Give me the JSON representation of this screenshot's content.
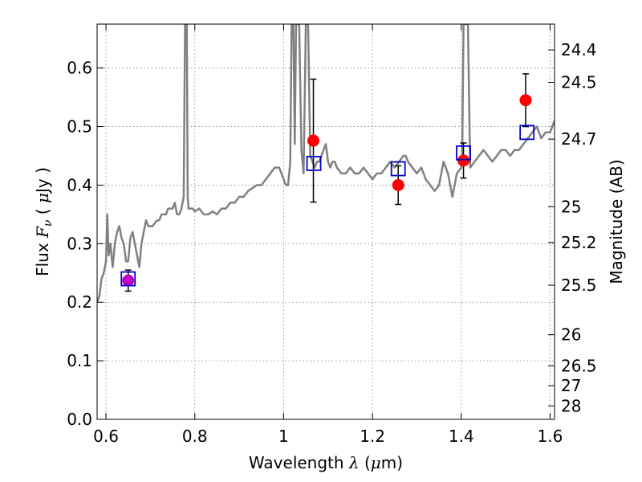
{
  "chart_data": {
    "type": "scatter",
    "title": "",
    "xlabel": {
      "pre": "Wavelength  ",
      "sym": "λ",
      "post": " (",
      "mu": "μ",
      "unit": "m)"
    },
    "ylabel": {
      "pre": "Flux  ",
      "sym": "F",
      "sub": "ν",
      "post": "  ( ",
      "mu": "μ",
      "unit": "Jy )"
    },
    "y2label": "Magnitude (AB)",
    "xlim": [
      0.58,
      1.61
    ],
    "ylim": [
      0.0,
      0.675
    ],
    "grid": true,
    "xticks": [
      {
        "v": 0.6,
        "label": "0.6"
      },
      {
        "v": 0.8,
        "label": "0.8"
      },
      {
        "v": 1.0,
        "label": "1"
      },
      {
        "v": 1.2,
        "label": "1.2"
      },
      {
        "v": 1.4,
        "label": "1.4"
      },
      {
        "v": 1.6,
        "label": "1.6"
      }
    ],
    "yticks": [
      {
        "v": 0.0,
        "label": "0.0"
      },
      {
        "v": 0.1,
        "label": "0.1"
      },
      {
        "v": 0.2,
        "label": "0.2"
      },
      {
        "v": 0.3,
        "label": "0.3"
      },
      {
        "v": 0.4,
        "label": "0.4"
      },
      {
        "v": 0.5,
        "label": "0.5"
      },
      {
        "v": 0.6,
        "label": "0.6"
      }
    ],
    "y2ticks": [
      {
        "v": 24.4,
        "label": "24.4"
      },
      {
        "v": 24.5,
        "label": "24.5"
      },
      {
        "v": 24.7,
        "label": "24.7"
      },
      {
        "v": 25.0,
        "label": "25"
      },
      {
        "v": 25.2,
        "label": "25.2"
      },
      {
        "v": 25.5,
        "label": "25.5"
      },
      {
        "v": 26.0,
        "label": "26"
      },
      {
        "v": 26.5,
        "label": "26.5"
      },
      {
        "v": 27.0,
        "label": "27"
      },
      {
        "v": 28.0,
        "label": "28"
      }
    ],
    "colors": {
      "spectrum": "#808080",
      "observed": "#ff0000",
      "model": "#0000cc",
      "optical": "#c000c0",
      "errorbar": "#000000",
      "grid": "#808080"
    },
    "series": [
      {
        "type": "line",
        "x": [
          0.58,
          0.585,
          0.59,
          0.595,
          0.6,
          0.603,
          0.606,
          0.61,
          0.615,
          0.62,
          0.625,
          0.63,
          0.635,
          0.64,
          0.645,
          0.65,
          0.655,
          0.66,
          0.665,
          0.67,
          0.675,
          0.68,
          0.685,
          0.69,
          0.695,
          0.7,
          0.705,
          0.71,
          0.715,
          0.72,
          0.725,
          0.73,
          0.735,
          0.74,
          0.745,
          0.75,
          0.755,
          0.76,
          0.765,
          0.77,
          0.775,
          0.778,
          0.78,
          0.782,
          0.784,
          0.786,
          0.79,
          0.795,
          0.8,
          0.81,
          0.82,
          0.83,
          0.84,
          0.85,
          0.86,
          0.87,
          0.88,
          0.89,
          0.9,
          0.91,
          0.92,
          0.93,
          0.94,
          0.95,
          0.96,
          0.97,
          0.98,
          0.99,
          1.0,
          1.005,
          1.01,
          1.015,
          1.018,
          1.02,
          1.022,
          1.025,
          1.028,
          1.03,
          1.035,
          1.04,
          1.045,
          1.05,
          1.055,
          1.06,
          1.065,
          1.07,
          1.075,
          1.08,
          1.085,
          1.09,
          1.095,
          1.1,
          1.105,
          1.11,
          1.115,
          1.12,
          1.13,
          1.14,
          1.15,
          1.16,
          1.17,
          1.18,
          1.19,
          1.2,
          1.21,
          1.22,
          1.23,
          1.24,
          1.25,
          1.26,
          1.27,
          1.275,
          1.28,
          1.29,
          1.3,
          1.31,
          1.32,
          1.33,
          1.34,
          1.35,
          1.36,
          1.37,
          1.38,
          1.39,
          1.4,
          1.402,
          1.405,
          1.408,
          1.41,
          1.412,
          1.415,
          1.42,
          1.43,
          1.44,
          1.45,
          1.46,
          1.47,
          1.48,
          1.49,
          1.5,
          1.51,
          1.52,
          1.53,
          1.54,
          1.55,
          1.56,
          1.57,
          1.58,
          1.59,
          1.6,
          1.605,
          1.61
        ],
        "y": [
          0.2,
          0.21,
          0.24,
          0.25,
          0.27,
          0.35,
          0.28,
          0.3,
          0.26,
          0.3,
          0.32,
          0.33,
          0.31,
          0.3,
          0.27,
          0.27,
          0.31,
          0.32,
          0.3,
          0.28,
          0.26,
          0.3,
          0.32,
          0.34,
          0.33,
          0.33,
          0.33,
          0.335,
          0.34,
          0.34,
          0.35,
          0.35,
          0.35,
          0.36,
          0.36,
          0.36,
          0.37,
          0.35,
          0.35,
          0.36,
          0.38,
          0.675,
          0.675,
          0.675,
          0.38,
          0.36,
          0.36,
          0.36,
          0.355,
          0.36,
          0.35,
          0.35,
          0.355,
          0.35,
          0.36,
          0.36,
          0.37,
          0.37,
          0.38,
          0.38,
          0.39,
          0.395,
          0.4,
          0.4,
          0.41,
          0.42,
          0.43,
          0.43,
          0.41,
          0.4,
          0.4,
          0.44,
          0.675,
          0.675,
          0.675,
          0.47,
          0.675,
          0.675,
          0.675,
          0.46,
          0.42,
          0.675,
          0.675,
          0.45,
          0.44,
          0.43,
          0.44,
          0.44,
          0.45,
          0.46,
          0.47,
          0.44,
          0.43,
          0.44,
          0.44,
          0.43,
          0.42,
          0.42,
          0.43,
          0.42,
          0.42,
          0.43,
          0.42,
          0.41,
          0.42,
          0.42,
          0.43,
          0.44,
          0.43,
          0.44,
          0.45,
          0.45,
          0.44,
          0.43,
          0.42,
          0.43,
          0.41,
          0.4,
          0.39,
          0.4,
          0.44,
          0.42,
          0.38,
          0.42,
          0.43,
          0.44,
          0.675,
          0.675,
          0.675,
          0.675,
          0.675,
          0.43,
          0.44,
          0.45,
          0.46,
          0.45,
          0.44,
          0.45,
          0.46,
          0.46,
          0.45,
          0.46,
          0.46,
          0.47,
          0.48,
          0.49,
          0.5,
          0.48,
          0.49,
          0.49,
          0.5,
          0.51
        ],
        "name": ""
      },
      {
        "type": "scatter",
        "marker": "circle",
        "color": "observed",
        "x": [
          1.067,
          1.258,
          1.405,
          1.545
        ],
        "y": [
          0.476,
          0.4,
          0.442,
          0.545
        ],
        "yerr": [
          0.105,
          0.033,
          0.03,
          0.045
        ]
      },
      {
        "type": "scatter",
        "marker": "circle",
        "color": "optical",
        "x": [
          0.65
        ],
        "y": [
          0.237
        ],
        "yerr": [
          0.018
        ]
      },
      {
        "type": "scatter",
        "marker": "square",
        "color": "model",
        "x": [
          0.65,
          1.068,
          1.258,
          1.405,
          1.548
        ],
        "y": [
          0.24,
          0.437,
          0.428,
          0.455,
          0.49
        ]
      }
    ]
  }
}
